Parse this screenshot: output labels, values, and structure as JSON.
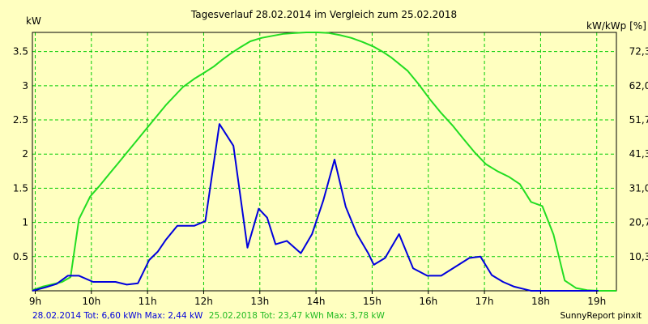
{
  "chart_data": {
    "type": "line",
    "title": "Tagesverlauf 28.02.2014 im Vergleich zum 25.02.2018",
    "ylabel_left": "kW",
    "ylabel_right": "kW/kWp [%]",
    "ylim": [
      0,
      3.78
    ],
    "x_range": [
      8.95,
      19.35
    ],
    "x_ticks": [
      {
        "v": 9,
        "label": "9h"
      },
      {
        "v": 10,
        "label": "10h"
      },
      {
        "v": 11,
        "label": "11h"
      },
      {
        "v": 12,
        "label": "12h"
      },
      {
        "v": 13,
        "label": "13h"
      },
      {
        "v": 14,
        "label": "14h"
      },
      {
        "v": 15,
        "label": "15h"
      },
      {
        "v": 16,
        "label": "16h"
      },
      {
        "v": 17,
        "label": "17h"
      },
      {
        "v": 18,
        "label": "18h"
      },
      {
        "v": 19,
        "label": "19h"
      }
    ],
    "y_ticks_left": [
      {
        "v": 0.5,
        "label": "0.5"
      },
      {
        "v": 1,
        "label": "1"
      },
      {
        "v": 1.5,
        "label": "1.5"
      },
      {
        "v": 2,
        "label": "2"
      },
      {
        "v": 2.5,
        "label": "2.5"
      },
      {
        "v": 3,
        "label": "3"
      },
      {
        "v": 3.5,
        "label": "3.5"
      }
    ],
    "y_ticks_right": [
      {
        "v": 0.5,
        "label": "10,3"
      },
      {
        "v": 1,
        "label": "20,7"
      },
      {
        "v": 1.5,
        "label": "31,0"
      },
      {
        "v": 2,
        "label": "41,3"
      },
      {
        "v": 2.5,
        "label": "51,7"
      },
      {
        "v": 3,
        "label": "62,0"
      },
      {
        "v": 3.5,
        "label": "72,3"
      }
    ],
    "grid": true,
    "series": [
      {
        "name": "25.02.2018",
        "color": "#22dd22",
        "x": [
          8.95,
          9.13,
          9.33,
          9.48,
          9.63,
          9.78,
          9.98,
          10.13,
          10.33,
          10.48,
          10.63,
          10.83,
          11.03,
          11.18,
          11.33,
          11.48,
          11.63,
          11.83,
          12.03,
          12.18,
          12.33,
          12.48,
          12.63,
          12.83,
          13.03,
          13.23,
          13.43,
          13.63,
          13.83,
          14.03,
          14.23,
          14.43,
          14.63,
          14.83,
          15.03,
          15.18,
          15.33,
          15.48,
          15.63,
          15.83,
          16.03,
          16.23,
          16.43,
          16.63,
          16.83,
          17.03,
          17.23,
          17.43,
          17.63,
          17.83,
          18.03,
          18.23,
          18.43,
          18.63,
          18.83,
          19.03,
          19.23,
          19.35
        ],
        "values": [
          0.01,
          0.06,
          0.1,
          0.13,
          0.2,
          1.05,
          1.38,
          1.52,
          1.72,
          1.87,
          2.02,
          2.22,
          2.42,
          2.57,
          2.72,
          2.85,
          2.98,
          3.1,
          3.2,
          3.28,
          3.38,
          3.47,
          3.55,
          3.65,
          3.7,
          3.73,
          3.76,
          3.77,
          3.78,
          3.78,
          3.77,
          3.74,
          3.7,
          3.64,
          3.57,
          3.5,
          3.42,
          3.32,
          3.22,
          3.02,
          2.8,
          2.6,
          2.42,
          2.22,
          2.02,
          1.85,
          1.75,
          1.67,
          1.56,
          1.3,
          1.24,
          0.82,
          0.15,
          0.04,
          0.01,
          0.0,
          0.0,
          0.0
        ]
      },
      {
        "name": "28.02.2014",
        "color": "#0000dd",
        "x": [
          8.95,
          9.18,
          9.38,
          9.58,
          9.78,
          10.03,
          10.23,
          10.43,
          10.63,
          10.83,
          11.03,
          11.18,
          11.33,
          11.53,
          11.83,
          12.03,
          12.28,
          12.53,
          12.78,
          12.98,
          13.13,
          13.28,
          13.48,
          13.73,
          13.93,
          14.13,
          14.33,
          14.53,
          14.73,
          14.93,
          15.03,
          15.23,
          15.48,
          15.73,
          15.98,
          16.23,
          16.48,
          16.73,
          16.93,
          17.13,
          17.33,
          17.53,
          17.73,
          17.83,
          18.03,
          18.23,
          18.43,
          18.63,
          18.83,
          19.03
        ],
        "values": [
          0.0,
          0.05,
          0.1,
          0.22,
          0.22,
          0.13,
          0.13,
          0.13,
          0.09,
          0.11,
          0.45,
          0.57,
          0.75,
          0.95,
          0.95,
          1.02,
          2.44,
          2.12,
          0.63,
          1.2,
          1.07,
          0.68,
          0.73,
          0.55,
          0.83,
          1.32,
          1.92,
          1.23,
          0.83,
          0.55,
          0.38,
          0.48,
          0.83,
          0.33,
          0.22,
          0.22,
          0.35,
          0.48,
          0.5,
          0.23,
          0.13,
          0.06,
          0.02,
          0.0,
          0.0,
          0.0,
          0.0,
          0.0,
          0.0,
          0.0
        ]
      }
    ]
  },
  "footer": {
    "left_blue": "28.02.2014 Tot: 6,60 kWh Max: 2,44 kW",
    "left_green": "25.02.2018 Tot: 23,47 kWh Max: 3,78 kW",
    "right": "SunnyReport pinxit"
  },
  "colors": {
    "background": "#ffffc0",
    "grid": "#00cc00",
    "series_2018": "#22dd22",
    "series_2014": "#0000dd"
  }
}
